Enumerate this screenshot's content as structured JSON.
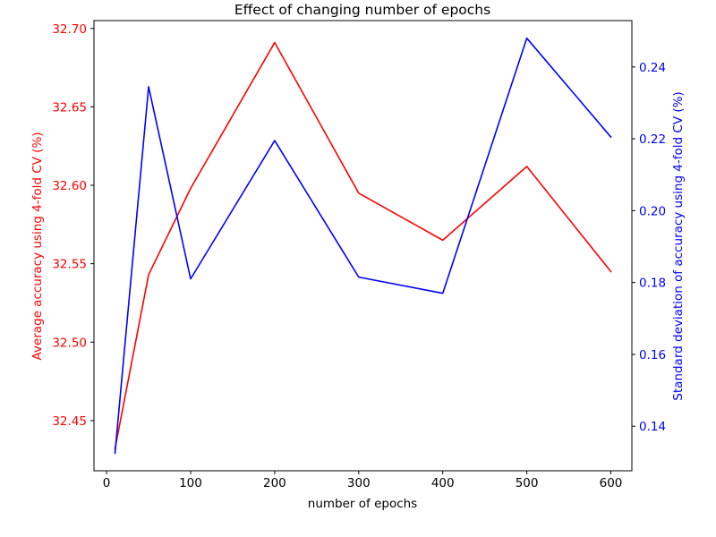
{
  "chart_data": {
    "type": "line",
    "title": "Effect of changing number of epochs",
    "xlabel": "number of epochs",
    "x": [
      10,
      50,
      100,
      200,
      300,
      400,
      500,
      600
    ],
    "xlim": [
      -15,
      625
    ],
    "xticks": [
      0,
      100,
      200,
      300,
      400,
      500,
      600
    ],
    "grid": false,
    "legend": "none",
    "left_axis": {
      "label": "Average accuracy using 4-fold CV (%)",
      "color": "#ff0000",
      "ylim": [
        32.418,
        32.705
      ],
      "ticks": [
        "32.45",
        "32.50",
        "32.55",
        "32.60",
        "32.65",
        "32.70"
      ]
    },
    "right_axis": {
      "label": "Standard deviation of accuracy using 4-fold CV (%)",
      "color": "#0000ff",
      "ylim": [
        0.1276,
        0.2529
      ],
      "ticks": [
        "0.14",
        "0.16",
        "0.18",
        "0.20",
        "0.22",
        "0.24"
      ]
    },
    "series": [
      {
        "axis": "left",
        "color": "#ff0000",
        "values": [
          32.432,
          32.543,
          32.598,
          32.691,
          32.595,
          32.565,
          32.612,
          32.545
        ]
      },
      {
        "axis": "right",
        "color": "#0000ff",
        "values": [
          0.1325,
          0.2345,
          0.181,
          0.2195,
          0.1815,
          0.177,
          0.248,
          0.2205
        ]
      }
    ]
  }
}
